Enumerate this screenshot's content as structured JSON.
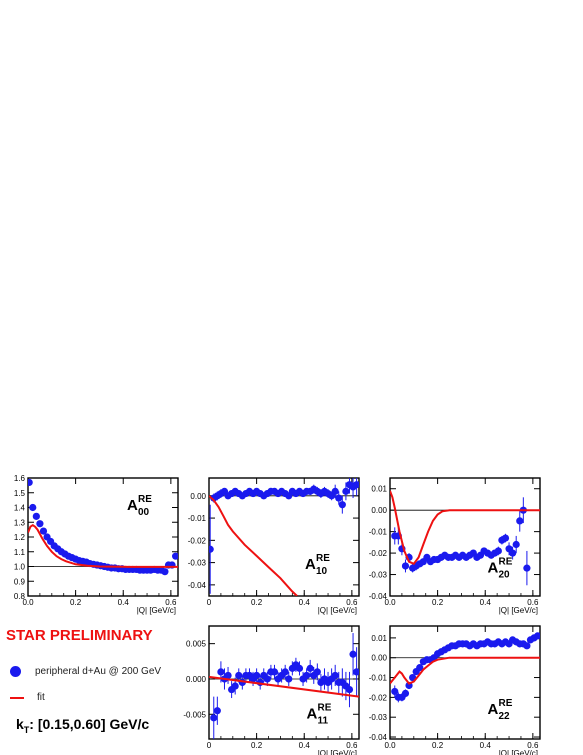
{
  "preliminary_label": "STAR PRELIMINARY",
  "legend": {
    "data_label": "peripheral d+Au @ 200 GeV",
    "fit_label": "fit",
    "kt_label": "k",
    "kt_sub": "T",
    "kt_range": ": [0.15,0.60] GeV/c"
  },
  "colors": {
    "data": "#1a1aee",
    "fit": "#ee1111",
    "axis": "#000000"
  },
  "chart_data": [
    {
      "type": "scatter",
      "panel": "A00",
      "label_main": "A",
      "label_sup": "RE",
      "label_sub": "00",
      "xlabel": "|Q| [GeV/c]",
      "xlim": [
        0,
        0.63
      ],
      "ylim": [
        0.8,
        1.6
      ],
      "xticks": [
        "0.0",
        "0.2",
        "0.4",
        "0.6"
      ],
      "xtick_values": [
        0,
        0.2,
        0.4,
        0.6
      ],
      "yticks": [
        "0.8",
        "0.9",
        "1.0",
        "1.1",
        "1.2",
        "1.3",
        "1.4",
        "1.5",
        "1.6"
      ],
      "ytick_values": [
        0.8,
        0.9,
        1.0,
        1.1,
        1.2,
        1.3,
        1.4,
        1.5,
        1.6
      ],
      "reference_line": 1.0,
      "series": [
        {
          "name": "peripheral d+Au @ 200 GeV",
          "x": [
            0.005,
            0.02,
            0.035,
            0.05,
            0.065,
            0.08,
            0.095,
            0.11,
            0.125,
            0.14,
            0.155,
            0.17,
            0.185,
            0.2,
            0.215,
            0.23,
            0.245,
            0.26,
            0.275,
            0.29,
            0.305,
            0.32,
            0.335,
            0.35,
            0.365,
            0.38,
            0.395,
            0.41,
            0.425,
            0.44,
            0.455,
            0.47,
            0.485,
            0.5,
            0.515,
            0.53,
            0.545,
            0.56,
            0.575,
            0.59,
            0.605,
            0.62
          ],
          "y": [
            1.57,
            1.4,
            1.34,
            1.29,
            1.24,
            1.2,
            1.17,
            1.14,
            1.12,
            1.1,
            1.085,
            1.07,
            1.06,
            1.05,
            1.04,
            1.035,
            1.03,
            1.02,
            1.015,
            1.01,
            1.005,
            1.0,
            0.995,
            0.99,
            0.99,
            0.985,
            0.985,
            0.98,
            0.98,
            0.98,
            0.98,
            0.975,
            0.975,
            0.975,
            0.975,
            0.98,
            0.975,
            0.975,
            0.965,
            1.01,
            1.01,
            1.07
          ]
        },
        {
          "name": "fit",
          "x": [
            0.0,
            0.01,
            0.02,
            0.03,
            0.04,
            0.05,
            0.06,
            0.08,
            0.1,
            0.12,
            0.14,
            0.16,
            0.18,
            0.2,
            0.25,
            0.3,
            0.4,
            0.5,
            0.6,
            0.63
          ],
          "y": [
            1.23,
            1.27,
            1.28,
            1.27,
            1.25,
            1.22,
            1.19,
            1.14,
            1.1,
            1.07,
            1.05,
            1.035,
            1.025,
            1.015,
            1.005,
            1.0,
            0.998,
            0.997,
            0.997,
            0.997
          ]
        }
      ]
    },
    {
      "type": "scatter",
      "panel": "A10",
      "label_main": "A",
      "label_sup": "RE",
      "label_sub": "10",
      "xlabel": "|Q| [GeV/c]",
      "xlim": [
        0,
        0.63
      ],
      "ylim": [
        -0.045,
        0.008
      ],
      "xticks": [
        "0",
        "0.2",
        "0.4",
        "0.6"
      ],
      "xtick_values": [
        0,
        0.2,
        0.4,
        0.6
      ],
      "yticks": [
        "-0.04",
        "-0.03",
        "-0.02",
        "-0.01",
        "0.00"
      ],
      "ytick_values": [
        -0.04,
        -0.03,
        -0.02,
        -0.01,
        0.0
      ],
      "reference_line": 0.0,
      "series": [
        {
          "name": "peripheral d+Au @ 200 GeV",
          "x": [
            0.005,
            0.02,
            0.035,
            0.05,
            0.065,
            0.08,
            0.095,
            0.11,
            0.125,
            0.14,
            0.155,
            0.17,
            0.185,
            0.2,
            0.215,
            0.23,
            0.245,
            0.26,
            0.275,
            0.29,
            0.305,
            0.32,
            0.335,
            0.35,
            0.365,
            0.38,
            0.395,
            0.41,
            0.425,
            0.44,
            0.455,
            0.47,
            0.485,
            0.5,
            0.515,
            0.53,
            0.545,
            0.56,
            0.575,
            0.59,
            0.605,
            0.62
          ],
          "y": [
            -0.024,
            -0.001,
            0.0,
            0.001,
            0.002,
            0.0,
            0.001,
            0.002,
            0.001,
            0.0,
            0.001,
            0.002,
            0.001,
            0.002,
            0.001,
            0.0,
            0.001,
            0.002,
            0.002,
            0.001,
            0.002,
            0.001,
            0.0,
            0.002,
            0.001,
            0.002,
            0.001,
            0.002,
            0.002,
            0.003,
            0.002,
            0.001,
            0.002,
            0.001,
            0.0,
            0.002,
            -0.001,
            -0.004,
            0.002,
            0.005,
            0.004,
            0.005
          ],
          "err": [
            0.02,
            0.002,
            0.002,
            0.002,
            0.0015,
            0.0015,
            0.0015,
            0.0015,
            0.0015,
            0.0015,
            0.0015,
            0.0015,
            0.0015,
            0.0015,
            0.0015,
            0.0015,
            0.0015,
            0.0015,
            0.0015,
            0.0015,
            0.0015,
            0.0015,
            0.0015,
            0.0015,
            0.0015,
            0.0015,
            0.0015,
            0.0015,
            0.0015,
            0.002,
            0.002,
            0.002,
            0.002,
            0.002,
            0.002,
            0.003,
            0.003,
            0.004,
            0.004,
            0.004,
            0.005,
            0.005
          ]
        },
        {
          "name": "fit",
          "x": [
            0.0,
            0.02,
            0.04,
            0.06,
            0.08,
            0.1,
            0.15,
            0.2,
            0.25,
            0.3,
            0.35,
            0.37
          ],
          "y": [
            0.0,
            -0.002,
            -0.005,
            -0.009,
            -0.013,
            -0.016,
            -0.022,
            -0.027,
            -0.032,
            -0.037,
            -0.043,
            -0.045
          ]
        }
      ]
    },
    {
      "type": "scatter",
      "panel": "A20",
      "label_main": "A",
      "label_sup": "RE",
      "label_sub": "20",
      "xlabel": "|Q| [GeV/c]",
      "xlim": [
        0,
        0.63
      ],
      "ylim": [
        -0.04,
        0.015
      ],
      "xticks": [
        "0.0",
        "0.2",
        "0.4",
        "0.6"
      ],
      "xtick_values": [
        0,
        0.2,
        0.4,
        0.6
      ],
      "yticks": [
        "-0.04",
        "-0.03",
        "-0.02",
        "-0.01",
        "0.00",
        "0.01"
      ],
      "ytick_values": [
        -0.04,
        -0.03,
        -0.02,
        -0.01,
        0.0,
        0.01
      ],
      "reference_line": 0.0,
      "series": [
        {
          "name": "peripheral d+Au @ 200 GeV",
          "x": [
            0.02,
            0.035,
            0.05,
            0.065,
            0.08,
            0.095,
            0.11,
            0.125,
            0.14,
            0.155,
            0.17,
            0.185,
            0.2,
            0.215,
            0.23,
            0.245,
            0.26,
            0.275,
            0.29,
            0.305,
            0.32,
            0.335,
            0.35,
            0.365,
            0.38,
            0.395,
            0.41,
            0.425,
            0.44,
            0.455,
            0.47,
            0.485,
            0.5,
            0.515,
            0.53,
            0.545,
            0.56,
            0.575
          ],
          "y": [
            -0.012,
            -0.012,
            -0.018,
            -0.026,
            -0.022,
            -0.027,
            -0.026,
            -0.025,
            -0.024,
            -0.022,
            -0.024,
            -0.023,
            -0.023,
            -0.022,
            -0.021,
            -0.022,
            -0.022,
            -0.021,
            -0.022,
            -0.021,
            -0.022,
            -0.021,
            -0.02,
            -0.022,
            -0.021,
            -0.019,
            -0.02,
            -0.021,
            -0.02,
            -0.019,
            -0.014,
            -0.013,
            -0.018,
            -0.02,
            -0.016,
            -0.005,
            0.0,
            -0.027
          ],
          "err": [
            0.004,
            0.004,
            0.003,
            0.003,
            0.002,
            0.002,
            0.002,
            0.0015,
            0.0015,
            0.0015,
            0.0015,
            0.0015,
            0.0015,
            0.0015,
            0.0015,
            0.0015,
            0.0015,
            0.0015,
            0.0015,
            0.0015,
            0.0015,
            0.0015,
            0.0015,
            0.0015,
            0.0015,
            0.0015,
            0.0015,
            0.0015,
            0.0015,
            0.002,
            0.002,
            0.002,
            0.003,
            0.003,
            0.004,
            0.005,
            0.006,
            0.008
          ]
        },
        {
          "name": "fit",
          "x": [
            0.0,
            0.01,
            0.02,
            0.04,
            0.06,
            0.08,
            0.1,
            0.12,
            0.14,
            0.16,
            0.18,
            0.2,
            0.22,
            0.25,
            0.3,
            0.4,
            0.5,
            0.6,
            0.63
          ],
          "y": [
            0.009,
            0.006,
            0.001,
            -0.01,
            -0.019,
            -0.024,
            -0.025,
            -0.022,
            -0.016,
            -0.01,
            -0.005,
            -0.002,
            -0.0005,
            0.0,
            0.0,
            0.0,
            0.0,
            0.0,
            0.0
          ]
        }
      ]
    },
    {
      "type": "scatter",
      "panel": "A11",
      "label_main": "A",
      "label_sup": "RE",
      "label_sub": "11",
      "xlabel": "|Q| [GeV/c]",
      "xlim": [
        0,
        0.63
      ],
      "ylim": [
        -0.0085,
        0.0075
      ],
      "xticks": [
        "0",
        "0.2",
        "0.4",
        "0.6"
      ],
      "xtick_values": [
        0,
        0.2,
        0.4,
        0.6
      ],
      "yticks": [
        "-0.005",
        "0.000",
        "0.005"
      ],
      "ytick_values": [
        -0.005,
        0.0,
        0.005
      ],
      "reference_line": 0.0,
      "series": [
        {
          "name": "peripheral d+Au @ 200 GeV",
          "x": [
            0.02,
            0.035,
            0.05,
            0.065,
            0.08,
            0.095,
            0.11,
            0.125,
            0.14,
            0.155,
            0.17,
            0.185,
            0.2,
            0.215,
            0.23,
            0.245,
            0.26,
            0.275,
            0.29,
            0.305,
            0.32,
            0.335,
            0.35,
            0.365,
            0.38,
            0.395,
            0.41,
            0.425,
            0.44,
            0.455,
            0.47,
            0.485,
            0.5,
            0.515,
            0.53,
            0.545,
            0.56,
            0.575,
            0.59,
            0.605,
            0.62
          ],
          "y": [
            -0.0055,
            -0.0045,
            0.001,
            0.0,
            0.0005,
            -0.0015,
            -0.001,
            0.0005,
            -0.0005,
            0.0005,
            0.0005,
            0.0,
            0.0005,
            -0.0005,
            0.0005,
            0.0,
            0.001,
            0.001,
            0.0,
            0.0005,
            0.001,
            0.0,
            0.0015,
            0.002,
            0.0015,
            0.0,
            0.0005,
            0.0015,
            0.0005,
            0.001,
            -0.0005,
            0.0,
            -0.0005,
            0.0,
            0.0005,
            -0.0005,
            -0.0005,
            -0.001,
            -0.0015,
            0.0035,
            0.001
          ],
          "err": [
            0.003,
            0.002,
            0.0015,
            0.0015,
            0.0012,
            0.0012,
            0.0012,
            0.001,
            0.001,
            0.001,
            0.001,
            0.001,
            0.001,
            0.001,
            0.001,
            0.001,
            0.001,
            0.001,
            0.001,
            0.001,
            0.001,
            0.001,
            0.001,
            0.001,
            0.001,
            0.001,
            0.001,
            0.0012,
            0.0012,
            0.0012,
            0.0012,
            0.0015,
            0.0015,
            0.0015,
            0.0015,
            0.0015,
            0.002,
            0.002,
            0.0025,
            0.003,
            0.0035
          ]
        },
        {
          "name": "fit",
          "x": [
            0.0,
            0.63
          ],
          "y": [
            0.0003,
            -0.0025
          ]
        }
      ]
    },
    {
      "type": "scatter",
      "panel": "A22",
      "label_main": "A",
      "label_sup": "RE",
      "label_sub": "22",
      "xlabel": "|Q| [GeV/c]",
      "xlim": [
        0,
        0.63
      ],
      "ylim": [
        -0.041,
        0.016
      ],
      "xticks": [
        "0.0",
        "0.2",
        "0.4",
        "0.6"
      ],
      "xtick_values": [
        0,
        0.2,
        0.4,
        0.6
      ],
      "yticks": [
        "-0.04",
        "-0.03",
        "-0.02",
        "-0.01",
        "0.00",
        "0.01"
      ],
      "ytick_values": [
        -0.04,
        -0.03,
        -0.02,
        -0.01,
        0.0,
        0.01
      ],
      "reference_line": 0.0,
      "series": [
        {
          "name": "peripheral d+Au @ 200 GeV",
          "x": [
            0.02,
            0.035,
            0.05,
            0.065,
            0.08,
            0.095,
            0.11,
            0.125,
            0.14,
            0.155,
            0.17,
            0.185,
            0.2,
            0.215,
            0.23,
            0.245,
            0.26,
            0.275,
            0.29,
            0.305,
            0.32,
            0.335,
            0.35,
            0.365,
            0.38,
            0.395,
            0.41,
            0.425,
            0.44,
            0.455,
            0.47,
            0.485,
            0.5,
            0.515,
            0.53,
            0.545,
            0.56,
            0.575,
            0.59,
            0.605,
            0.62
          ],
          "y": [
            -0.017,
            -0.02,
            -0.02,
            -0.018,
            -0.014,
            -0.01,
            -0.007,
            -0.005,
            -0.002,
            -0.001,
            -0.001,
            0.0,
            0.002,
            0.003,
            0.004,
            0.005,
            0.006,
            0.006,
            0.007,
            0.007,
            0.007,
            0.006,
            0.007,
            0.006,
            0.007,
            0.007,
            0.008,
            0.007,
            0.007,
            0.008,
            0.007,
            0.008,
            0.007,
            0.009,
            0.008,
            0.007,
            0.007,
            0.006,
            0.009,
            0.01,
            0.011
          ],
          "err": [
            0.003,
            0.0025,
            0.002,
            0.002,
            0.0015,
            0.0015,
            0.0015,
            0.0012,
            0.0012,
            0.0012,
            0.0012,
            0.001,
            0.001,
            0.001,
            0.001,
            0.001,
            0.001,
            0.001,
            0.001,
            0.001,
            0.001,
            0.001,
            0.001,
            0.001,
            0.001,
            0.001,
            0.001,
            0.001,
            0.001,
            0.001,
            0.001,
            0.001,
            0.001,
            0.001,
            0.0012,
            0.0012,
            0.0012,
            0.0015,
            0.0015,
            0.0015,
            0.0015
          ]
        },
        {
          "name": "fit",
          "x": [
            0.0,
            0.02,
            0.04,
            0.05,
            0.06,
            0.08,
            0.1,
            0.12,
            0.14,
            0.16,
            0.18,
            0.2,
            0.25,
            0.3,
            0.4,
            0.5,
            0.6,
            0.63
          ],
          "y": [
            -0.013,
            -0.01,
            -0.007,
            -0.008,
            -0.01,
            -0.013,
            -0.012,
            -0.009,
            -0.006,
            -0.004,
            -0.002,
            -0.001,
            0.0,
            0.0,
            0.0,
            0.0,
            0.0,
            0.0
          ]
        }
      ]
    }
  ]
}
